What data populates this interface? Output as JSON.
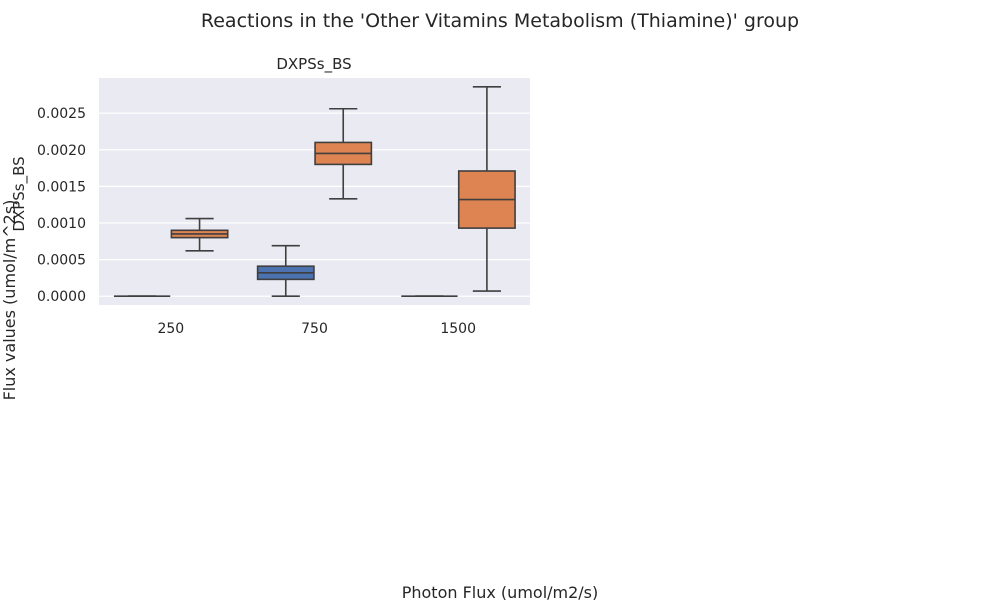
{
  "figure": {
    "suptitle": "Reactions in the 'Other Vitamins Metabolism (Thiamine)' group",
    "supxlabel": "Photon Flux (umol/m2/s)",
    "supylabel": "Flux values (umol/m^2s)"
  },
  "chart_data": {
    "type": "box",
    "title": "DXPSs_BS",
    "xlabel": "",
    "ylabel": "DXPSs_BS",
    "categories": [
      "250",
      "750",
      "1500"
    ],
    "ylim": [
      -0.00012,
      0.00298
    ],
    "yticks": [
      "0.0000",
      "0.0005",
      "0.0010",
      "0.0015",
      "0.0020",
      "0.0025"
    ],
    "grid": true,
    "background": "#eaeaf2",
    "series": [
      {
        "color": "#4c72b0",
        "boxes": [
          {
            "min": 0,
            "q1": 0,
            "median": 0,
            "q3": 0,
            "max": 0
          },
          {
            "min": 0,
            "q1": 0.00023,
            "median": 0.00032,
            "q3": 0.00041,
            "max": 0.00069
          },
          {
            "min": 0,
            "q1": 0,
            "median": 0,
            "q3": 0,
            "max": 0
          }
        ]
      },
      {
        "color": "#dd8452",
        "boxes": [
          {
            "min": 0.00062,
            "q1": 0.0008,
            "median": 0.00085,
            "q3": 0.0009,
            "max": 0.00106
          },
          {
            "min": 0.00133,
            "q1": 0.0018,
            "median": 0.00195,
            "q3": 0.0021,
            "max": 0.00256
          },
          {
            "min": 7e-05,
            "q1": 0.00093,
            "median": 0.00132,
            "q3": 0.00171,
            "max": 0.00286
          }
        ]
      }
    ]
  }
}
